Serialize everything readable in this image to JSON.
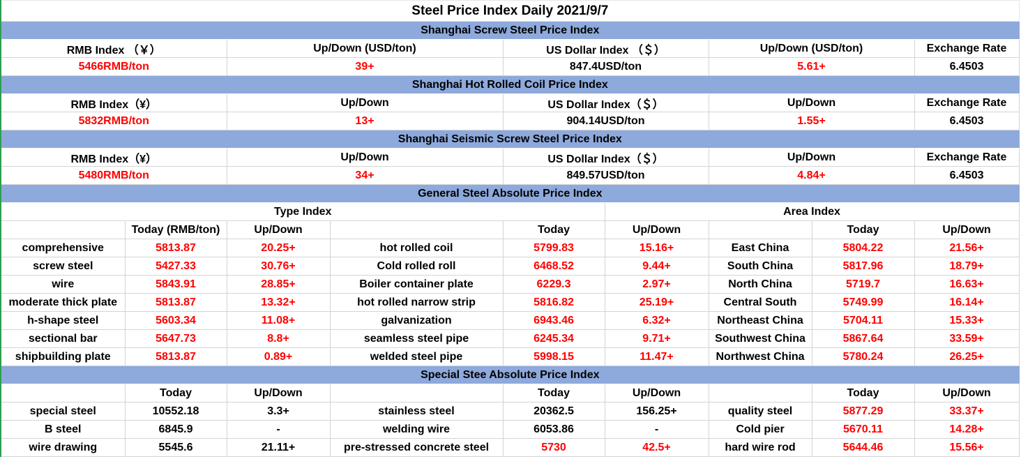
{
  "title": "Steel Price Index Daily  2021/9/7",
  "sections": [
    {
      "title": "Shanghai Screw Steel Price Index",
      "headers": [
        "RMB Index （￥）",
        "Up/Down (USD/ton)",
        "US Dollar Index （＄）",
        "Up/Down (USD/ton)",
        "Exchange Rate"
      ],
      "values": [
        "5466RMB/ton",
        "39+",
        "847.4USD/ton",
        "5.61+",
        6.4503
      ]
    },
    {
      "title": "Shanghai Hot Rolled Coil Price Index",
      "headers": [
        "RMB Index（¥）",
        "Up/Down",
        "US Dollar Index（＄）",
        "Up/Down",
        "Exchange Rate"
      ],
      "values": [
        "5832RMB/ton",
        "13+",
        "904.14USD/ton",
        "1.55+",
        6.4503
      ]
    },
    {
      "title": "Shanghai Seismic Screw Steel Price Index",
      "headers": [
        "RMB Index（¥）",
        "Up/Down",
        "US Dollar Index（＄）",
        "Up/Down",
        "Exchange Rate"
      ],
      "values": [
        "5480RMB/ton",
        "34+",
        "849.57USD/ton",
        "4.84+",
        6.4503
      ]
    }
  ],
  "general": {
    "title": "General Steel Absolute Price Index",
    "type_index": "Type Index",
    "area_index": "Area Index",
    "headers": [
      "Today (RMB/ton)",
      "Up/Down",
      "Today",
      "Up/Down",
      "Today",
      "Up/Down"
    ],
    "rows": [
      [
        "comprehensive",
        5813.87,
        "20.25+",
        "hot rolled coil",
        5799.83,
        "15.16+",
        "East China",
        5804.22,
        "21.56+"
      ],
      [
        "screw steel",
        5427.33,
        "30.76+",
        "Cold rolled roll",
        6468.52,
        "9.44+",
        "South China",
        5817.96,
        "18.79+"
      ],
      [
        "wire",
        5843.91,
        "28.85+",
        "Boiler container plate",
        6229.3,
        "2.97+",
        "North China",
        5719.7,
        "16.63+"
      ],
      [
        "moderate thick plate",
        5813.87,
        "13.32+",
        "hot rolled narrow strip",
        5816.82,
        "25.19+",
        "Central South",
        5749.99,
        "16.14+"
      ],
      [
        "h-shape steel",
        5603.34,
        "11.08+",
        "galvanization",
        6943.46,
        "6.32+",
        "Northeast China",
        5704.11,
        "15.33+"
      ],
      [
        "sectional bar",
        5647.73,
        "8.8+",
        "seamless steel pipe",
        6245.34,
        "9.71+",
        "Southwest China",
        5867.64,
        "33.59+"
      ],
      [
        "shipbuilding plate",
        5813.87,
        "0.89+",
        "welded steel pipe",
        5998.15,
        "11.47+",
        "Northwest China",
        5780.24,
        "26.25+"
      ]
    ]
  },
  "special": {
    "title": "Special Stee Absolute Price Index",
    "headers": [
      "Today",
      "Up/Down",
      "Today",
      "Up/Down",
      "Today",
      "Up/Down"
    ],
    "rows": [
      [
        "special steel",
        10552.18,
        "3.3+",
        "stainless steel",
        20362.5,
        "156.25+",
        "quality steel",
        5877.29,
        "33.37+"
      ],
      [
        "B steel",
        6845.9,
        "-",
        "welding wire",
        6053.86,
        "-",
        "Cold pier",
        5670.11,
        "14.28+"
      ],
      [
        "wire drawing",
        5545.6,
        "21.11+",
        "pre-stressed concrete steel",
        5730,
        "42.5+",
        "hard wire rod",
        5644.46,
        "15.56+"
      ]
    ]
  }
}
